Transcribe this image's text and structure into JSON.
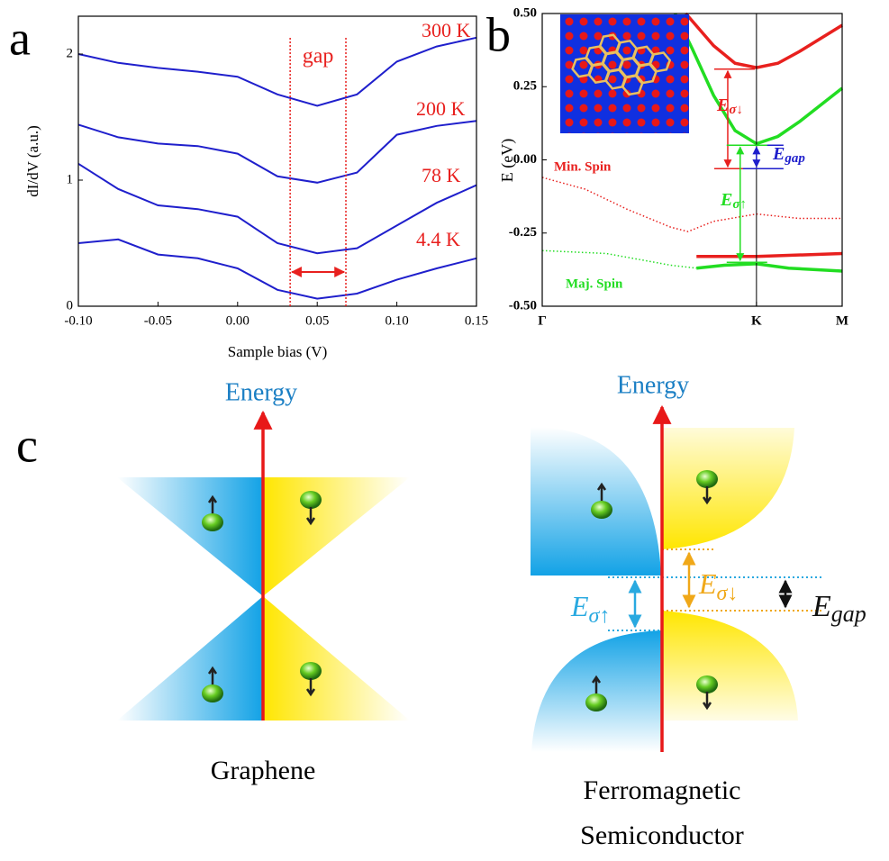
{
  "chart_data": [
    {
      "type": "line",
      "label": "a",
      "xlabel": "Sample bias (V)",
      "ylabel": "dI/dV (a.u.)",
      "x": [
        -0.1,
        -0.075,
        -0.05,
        -0.025,
        0,
        0.025,
        0.05,
        0.075,
        0.1,
        0.125,
        0.15
      ],
      "series": [
        {
          "name": "300 K",
          "color": "#1f1fcc",
          "values": [
            2.0,
            1.93,
            1.89,
            1.86,
            1.82,
            1.68,
            1.59,
            1.68,
            1.94,
            2.06,
            2.13
          ]
        },
        {
          "name": "200 K",
          "color": "#1f1fcc",
          "values": [
            1.44,
            1.34,
            1.29,
            1.27,
            1.21,
            1.03,
            0.98,
            1.06,
            1.36,
            1.43,
            1.47
          ]
        },
        {
          "name": "78 K",
          "color": "#1f1fcc",
          "values": [
            1.13,
            0.93,
            0.8,
            0.77,
            0.71,
            0.5,
            0.42,
            0.46,
            0.64,
            0.82,
            0.96
          ]
        },
        {
          "name": "4.4 K",
          "color": "#1f1fcc",
          "values": [
            0.5,
            0.53,
            0.41,
            0.38,
            0.3,
            0.13,
            0.06,
            0.1,
            0.21,
            0.3,
            0.38
          ]
        }
      ],
      "label_color": "#e8201e",
      "xlim": [
        -0.1,
        0.15
      ],
      "ylim": [
        0,
        2.3
      ],
      "xticks": [
        {
          "value": -0.1,
          "label": "-0.10"
        },
        {
          "value": -0.05,
          "label": "-0.05"
        },
        {
          "value": 0,
          "label": "0.00"
        },
        {
          "value": 0.05,
          "label": "0.05"
        },
        {
          "value": 0.1,
          "label": "0.10"
        },
        {
          "value": 0.15,
          "label": "0.15"
        }
      ],
      "yticks": [
        0,
        1,
        2
      ],
      "annotation": {
        "text": "gap",
        "lines": [
          0.033,
          0.068
        ],
        "color": "#e8201e"
      }
    },
    {
      "type": "line",
      "label": "b",
      "ylabel": "E (eV)",
      "xlim": [
        0,
        1.4
      ],
      "ylim": [
        -0.5,
        0.5
      ],
      "xticks": [
        {
          "value": 0,
          "label": "Γ"
        },
        {
          "value": 1,
          "label": "K"
        },
        {
          "value": 1.4,
          "label": "M"
        }
      ],
      "yticks": [
        {
          "value": 0.5,
          "label": "0.50"
        },
        {
          "value": 0.25,
          "label": "0.25"
        },
        {
          "value": 0,
          "label": "0.00"
        },
        {
          "value": -0.25,
          "label": "-0.25"
        },
        {
          "value": -0.5,
          "label": "-0.50"
        }
      ],
      "series": [
        {
          "color": "#e8201e",
          "style": "solid",
          "x": [
            0.67,
            0.8,
            0.9,
            1.0,
            1.1,
            1.2,
            1.4
          ],
          "values": [
            0.5,
            0.39,
            0.33,
            0.315,
            0.33,
            0.37,
            0.46
          ]
        },
        {
          "color": "#22dd22",
          "style": "solid",
          "x": [
            0.62,
            0.7,
            0.8,
            0.9,
            1.0,
            1.1,
            1.2,
            1.4
          ],
          "values": [
            0.5,
            0.38,
            0.22,
            0.1,
            0.055,
            0.08,
            0.13,
            0.245
          ]
        },
        {
          "color": "#e8201e",
          "style": "dotted",
          "x": [
            0,
            0.2,
            0.4,
            0.6,
            0.68,
            0.8,
            1.0,
            1.2,
            1.4
          ],
          "values": [
            -0.06,
            -0.1,
            -0.17,
            -0.23,
            -0.245,
            -0.21,
            -0.185,
            -0.2,
            -0.2
          ]
        },
        {
          "color": "#e8201e",
          "style": "solid",
          "x": [
            0.72,
            1.0,
            1.4
          ],
          "values": [
            -0.33,
            -0.33,
            -0.32
          ]
        },
        {
          "color": "#22dd22",
          "style": "dotted",
          "x": [
            0,
            0.3,
            0.6,
            0.72
          ],
          "values": [
            -0.31,
            -0.32,
            -0.36,
            -0.37
          ]
        },
        {
          "color": "#22dd22",
          "style": "solid",
          "x": [
            0.72,
            0.85,
            1.0,
            1.15,
            1.4
          ],
          "values": [
            -0.37,
            -0.36,
            -0.355,
            -0.37,
            -0.38
          ]
        }
      ],
      "spin_labels": [
        {
          "text": "Min. Spin",
          "color": "#e8201e"
        },
        {
          "text": "Maj. Spin",
          "color": "#22dd22"
        }
      ],
      "arrows": [
        {
          "main": "E",
          "sub": "σ↓",
          "color": "#e8201e",
          "x": 0.866,
          "from": -0.03,
          "to": 0.31
        },
        {
          "main": "E",
          "sub": "gap",
          "color": "#1f1fcc",
          "x": 1.0,
          "from": -0.03,
          "to": 0.05
        },
        {
          "main": "E",
          "sub": "σ↑",
          "color": "#22dd22",
          "x": 0.924,
          "from": -0.35,
          "to": 0.05
        }
      ]
    }
  ],
  "diagram": {
    "label": "c",
    "axis_label": "Energy",
    "graphene": {
      "caption": "Graphene"
    },
    "semiconductor": {
      "caption": [
        "Ferromagnetic",
        "Semiconductor"
      ],
      "e_up": {
        "main": "E",
        "sub": "σ↑"
      },
      "e_down": {
        "main": "E",
        "sub": "σ↓"
      },
      "e_gap": {
        "main": "E",
        "sub": "gap"
      }
    }
  }
}
